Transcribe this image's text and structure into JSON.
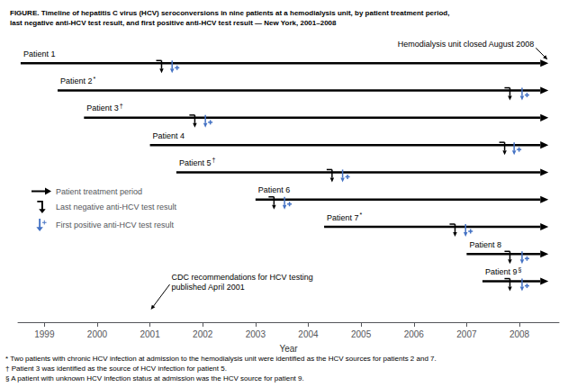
{
  "chart_data": {
    "type": "timeline",
    "title": "FIGURE. Timeline of hepatitis C virus (HCV) seroconversions in nine patients at a hemodialysis unit, by patient treatment period,\nlast negative anti-HCV test result, and first positive anti-HCV test result — New York, 2001–2008",
    "xlabel": "Year",
    "xlim": [
      1998.5,
      2008.75
    ],
    "xticks": [
      1999,
      2000,
      2001,
      2002,
      2003,
      2004,
      2005,
      2006,
      2007,
      2008
    ],
    "grid": false,
    "legend": "left",
    "tick_labels": "x",
    "categories": [
      "Patient 1",
      "Patient 2",
      "Patient 3",
      "Patient 4",
      "Patient 5",
      "Patient 6",
      "Patient 7",
      "Patient 8",
      "Patient 9"
    ],
    "superscripts": [
      null,
      "*",
      "†",
      null,
      "†",
      null,
      "*",
      null,
      "§"
    ],
    "series": [
      {
        "name": "Patient treatment period",
        "type": "arrow",
        "color": "#000000",
        "start": [
          1998.55,
          1999.25,
          1999.75,
          2001.0,
          2001.5,
          2003.0,
          2004.3,
          2007.0,
          2007.3
        ],
        "end": [
          2008.55,
          2008.55,
          2008.55,
          2008.55,
          2008.55,
          2008.55,
          2008.55,
          2008.55,
          2008.55
        ]
      },
      {
        "name": "Last negative anti-HCV test result",
        "type": "marker",
        "marker": "bracket",
        "color": "#000000",
        "values": [
          2001.22,
          2007.82,
          2001.85,
          2007.72,
          2004.45,
          2003.35,
          2006.78,
          2007.82,
          2007.82
        ]
      },
      {
        "name": "First positive anti-HCV test result",
        "type": "marker",
        "marker": "plus",
        "color": "#4472C4",
        "values": [
          2001.42,
          2008.05,
          2002.05,
          2007.9,
          2004.65,
          2003.55,
          2006.98,
          2008.05,
          2008.05
        ]
      }
    ],
    "annotations": [
      {
        "text": "Hemodialysis unit closed August 2008",
        "x": 2008.55,
        "category": "Patient 1"
      },
      {
        "text": "CDC recommendations for HCV testing\npublished April 2001",
        "x": 2001.0
      }
    ],
    "footnotes": [
      "* Two patients with chronic HCV infection at admission to the hemodialysis unit were identified as the HCV sources for patients 2 and 7.",
      "† Patient 3 was identified as the source of HCV infection for patient 5.",
      "§ A patient with unknown HCV infection status at admission was the HCV source for patient 9."
    ]
  }
}
